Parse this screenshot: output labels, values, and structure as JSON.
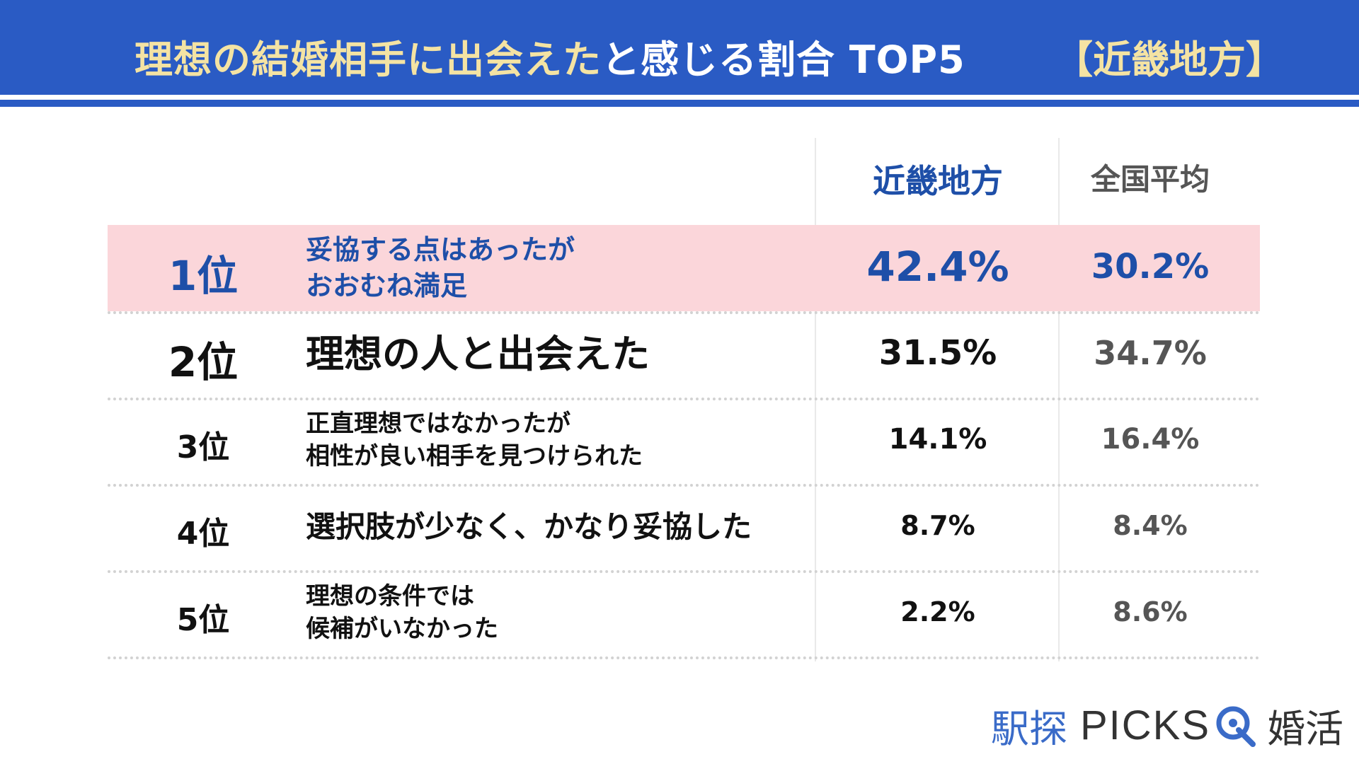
{
  "header": {
    "title_main": "理想の結婚相手に出会えた",
    "title_accent": "と感じる割合 TOP5",
    "region": "【近畿地方】"
  },
  "columns": {
    "region": "近畿地方",
    "national": "全国平均"
  },
  "colors": {
    "header_blue": "#2a5bc4",
    "title_yellow": "#f4e3a3",
    "highlight_pink": "#fbd6da",
    "rank1_blue": "#1e4fa8",
    "national_gray": "#555555"
  },
  "chart_data": {
    "type": "table",
    "title": "理想の結婚相手に出会えたと感じる割合 TOP5 【近畿地方】",
    "columns": [
      "",
      "",
      "近畿地方",
      "全国平均"
    ],
    "rows": [
      {
        "rank": "1位",
        "label": [
          "妥協する点はあったが",
          "おおむね満足"
        ],
        "region": "42.4%",
        "national": "30.2%"
      },
      {
        "rank": "2位",
        "label": [
          "理想の人と出会えた"
        ],
        "region": "31.5%",
        "national": "34.7%"
      },
      {
        "rank": "3位",
        "label": [
          "正直理想ではなかったが",
          "相性が良い相手を見つけられた"
        ],
        "region": "14.1%",
        "national": "16.4%"
      },
      {
        "rank": "4位",
        "label": [
          "選択肢が少なく、かなり妥協した"
        ],
        "region": "8.7%",
        "national": "8.4%"
      },
      {
        "rank": "5位",
        "label": [
          "理想の条件では",
          "候補がいなかった"
        ],
        "region": "2.2%",
        "national": "8.6%"
      }
    ]
  },
  "logo": {
    "kanji": "駅探",
    "picks": "PICKS",
    "konkatsu": "婚活",
    "icon": "magnifier-q-icon"
  }
}
